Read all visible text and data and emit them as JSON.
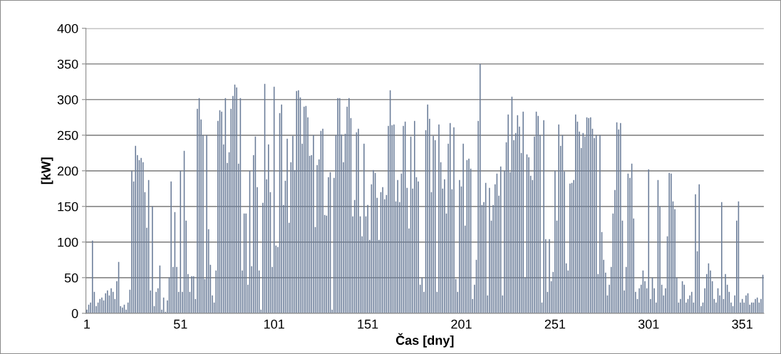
{
  "chart_data": {
    "type": "bar",
    "xlabel": "Čas [dny]",
    "ylabel": "[kW]",
    "color": "#6b7d99",
    "ylim": [
      0,
      400
    ],
    "yticks": [
      0,
      50,
      100,
      150,
      200,
      250,
      300,
      350,
      400
    ],
    "grid": "y",
    "legend": false,
    "categories": [
      "1",
      null,
      null,
      null,
      null,
      null,
      null,
      null,
      null,
      null,
      null,
      null,
      null,
      null,
      null,
      null,
      null,
      null,
      null,
      null,
      null,
      null,
      null,
      null,
      null,
      null,
      null,
      null,
      null,
      null,
      null,
      null,
      null,
      null,
      null,
      null,
      null,
      null,
      null,
      null,
      null,
      null,
      null,
      null,
      null,
      null,
      null,
      null,
      null,
      null,
      "51",
      null,
      null,
      null,
      null,
      null,
      null,
      null,
      null,
      null,
      null,
      null,
      null,
      null,
      null,
      null,
      null,
      null,
      null,
      null,
      null,
      null,
      null,
      null,
      null,
      null,
      null,
      null,
      null,
      null,
      null,
      null,
      null,
      null,
      null,
      null,
      null,
      null,
      null,
      null,
      null,
      null,
      null,
      null,
      null,
      null,
      null,
      null,
      null,
      null,
      "101",
      null,
      null,
      null,
      null,
      null,
      null,
      null,
      null,
      null,
      null,
      null,
      null,
      null,
      null,
      null,
      null,
      null,
      null,
      null,
      null,
      null,
      null,
      null,
      null,
      null,
      null,
      null,
      null,
      null,
      null,
      null,
      null,
      null,
      null,
      null,
      null,
      null,
      null,
      null,
      null,
      null,
      null,
      null,
      null,
      null,
      null,
      null,
      null,
      null,
      "151",
      null,
      null,
      null,
      null,
      null,
      null,
      null,
      null,
      null,
      null,
      null,
      null,
      null,
      null,
      null,
      null,
      null,
      null,
      null,
      null,
      null,
      null,
      null,
      null,
      null,
      null,
      null,
      null,
      null,
      null,
      null,
      null,
      null,
      null,
      null,
      null,
      null,
      null,
      null,
      null,
      null,
      null,
      null,
      null,
      null,
      null,
      null,
      null,
      null,
      "201",
      null,
      null,
      null,
      null,
      null,
      null,
      null,
      null,
      null,
      null,
      null,
      null,
      null,
      null,
      null,
      null,
      null,
      null,
      null,
      null,
      null,
      null,
      null,
      null,
      null,
      null,
      null,
      null,
      null,
      null,
      null,
      null,
      null,
      null,
      null,
      null,
      null,
      null,
      null,
      null,
      null,
      null,
      null,
      null,
      null,
      null,
      null,
      null,
      null,
      "251",
      null,
      null,
      null,
      null,
      null,
      null,
      null,
      null,
      null,
      null,
      null,
      null,
      null,
      null,
      null,
      null,
      null,
      null,
      null,
      null,
      null,
      null,
      null,
      null,
      null,
      null,
      null,
      null,
      null,
      null,
      null,
      null,
      null,
      null,
      null,
      null,
      null,
      null,
      null,
      null,
      null,
      null,
      null,
      null,
      null,
      null,
      null,
      null,
      null,
      "301",
      null,
      null,
      null,
      null,
      null,
      null,
      null,
      null,
      null,
      null,
      null,
      null,
      null,
      null,
      null,
      null,
      null,
      null,
      null,
      null,
      null,
      null,
      null,
      null,
      null,
      null,
      null,
      null,
      null,
      null,
      null,
      null,
      null,
      null,
      null,
      null,
      null,
      null,
      null,
      null,
      null,
      null,
      null,
      null,
      null,
      null,
      null,
      null,
      null,
      "351",
      null,
      null,
      null,
      null,
      null,
      null,
      null,
      null,
      null,
      null,
      null
    ],
    "values": [
      5,
      12,
      15,
      102,
      30,
      10,
      15,
      20,
      22,
      18,
      28,
      32,
      25,
      35,
      30,
      20,
      45,
      72,
      10,
      8,
      12,
      5,
      15,
      33,
      200,
      185,
      235,
      222,
      215,
      218,
      212,
      170,
      120,
      187,
      32,
      150,
      10,
      30,
      35,
      67,
      5,
      22,
      2,
      18,
      50,
      185,
      65,
      142,
      65,
      30,
      200,
      30,
      228,
      130,
      55,
      30,
      52,
      52,
      20,
      287,
      302,
      272,
      250,
      48,
      250,
      118,
      68,
      25,
      15,
      60,
      270,
      285,
      283,
      237,
      302,
      211,
      226,
      287,
      305,
      321,
      317,
      210,
      302,
      60,
      140,
      140,
      40,
      200,
      66,
      222,
      248,
      177,
      60,
      5,
      155,
      322,
      188,
      237,
      170,
      65,
      318,
      95,
      93,
      281,
      293,
      152,
      186,
      245,
      127,
      212,
      249,
      201,
      312,
      313,
      303,
      238,
      290,
      291,
      275,
      221,
      222,
      250,
      121,
      208,
      216,
      256,
      259,
      138,
      137,
      191,
      198,
      5,
      190,
      250,
      302,
      302,
      251,
      212,
      252,
      290,
      302,
      274,
      136,
      159,
      254,
      259,
      136,
      108,
      238,
      136,
      152,
      103,
      181,
      201,
      197,
      162,
      103,
      170,
      177,
      160,
      166,
      263,
      313,
      264,
      265,
      157,
      187,
      156,
      196,
      263,
      269,
      176,
      119,
      248,
      175,
      270,
      191,
      185,
      40,
      50,
      30,
      257,
      293,
      273,
      170,
      249,
      243,
      30,
      265,
      212,
      175,
      188,
      140,
      238,
      267,
      174,
      261,
      48,
      30,
      187,
      178,
      238,
      123,
      215,
      217,
      203,
      20,
      40,
      75,
      270,
      350,
      152,
      156,
      183,
      25,
      176,
      130,
      152,
      181,
      196,
      165,
      206,
      25,
      200,
      240,
      279,
      198,
      304,
      243,
      253,
      278,
      262,
      225,
      283,
      50,
      223,
      219,
      193,
      187,
      248,
      283,
      277,
      250,
      15,
      271,
      104,
      30,
      104,
      45,
      58,
      200,
      130,
      265,
      235,
      250,
      199,
      70,
      60,
      182,
      183,
      187,
      279,
      269,
      255,
      232,
      253,
      248,
      275,
      274,
      275,
      259,
      246,
      250,
      55,
      250,
      114,
      75,
      57,
      25,
      40,
      65,
      140,
      173,
      268,
      258,
      267,
      130,
      32,
      65,
      196,
      190,
      210,
      133,
      30,
      20,
      35,
      40,
      60,
      45,
      35,
      202,
      20,
      50,
      35,
      15,
      187,
      150,
      40,
      25,
      35,
      108,
      197,
      196,
      157,
      146,
      50,
      15,
      20,
      45,
      40,
      15,
      20,
      25,
      30,
      15,
      167,
      87,
      181,
      10,
      15,
      35,
      55,
      70,
      60,
      45,
      20,
      15,
      35,
      25,
      156,
      20,
      55,
      40,
      30,
      15,
      10,
      25,
      130,
      157,
      15,
      20,
      15,
      25,
      28,
      12,
      15,
      15,
      20,
      22,
      15,
      20,
      54
    ]
  }
}
